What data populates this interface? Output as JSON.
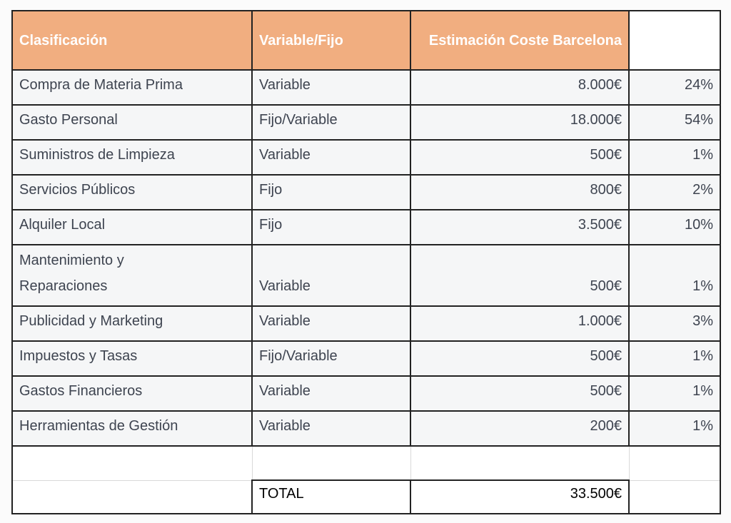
{
  "page": {
    "background": "#fbfbfb"
  },
  "colors": {
    "header_bg": "#f1ae80",
    "header_text": "#ffffff",
    "row_bg": "#f5f6f7",
    "body_text": "#3e4450",
    "total_text": "#000000",
    "dark_border": "#222222",
    "light_border": "#d9d9d9"
  },
  "table": {
    "headers": [
      {
        "label": "Clasificación"
      },
      {
        "label": "Variable/Fijo"
      },
      {
        "label": "Estimación Coste Barcelona"
      },
      {
        "label": ""
      }
    ],
    "rows": [
      {
        "cells": [
          "Compra de Materia Prima",
          "Variable",
          "8.000€",
          "24%"
        ]
      },
      {
        "cells": [
          "Gasto Personal",
          "Fijo/Variable",
          "18.000€",
          "54%"
        ]
      },
      {
        "cells": [
          "Suministros de Limpieza",
          "Variable",
          "500€",
          "1%"
        ]
      },
      {
        "cells": [
          "Servicios Públicos",
          "Fijo",
          "800€",
          "2%"
        ]
      },
      {
        "cells": [
          "Alquiler Local",
          "Fijo",
          "3.500€",
          "10%"
        ]
      },
      {
        "cells": [
          "Mantenimiento y Reparaciones",
          "Variable",
          "500€",
          "1%"
        ],
        "tall": true
      },
      {
        "cells": [
          "Publicidad y Marketing",
          "Variable",
          "1.000€",
          "3%"
        ]
      },
      {
        "cells": [
          "Impuestos y Tasas",
          "Fijo/Variable",
          "500€",
          "1%"
        ]
      },
      {
        "cells": [
          "Gastos Financieros",
          "Variable",
          "500€",
          "1%"
        ]
      },
      {
        "cells": [
          "Herramientas de Gestión",
          "Variable",
          "200€",
          "1%"
        ]
      }
    ],
    "empty_row": {
      "cells": [
        "",
        "",
        "",
        ""
      ]
    },
    "total_row": {
      "cells": [
        "",
        "TOTAL",
        "33.500€",
        ""
      ]
    }
  }
}
